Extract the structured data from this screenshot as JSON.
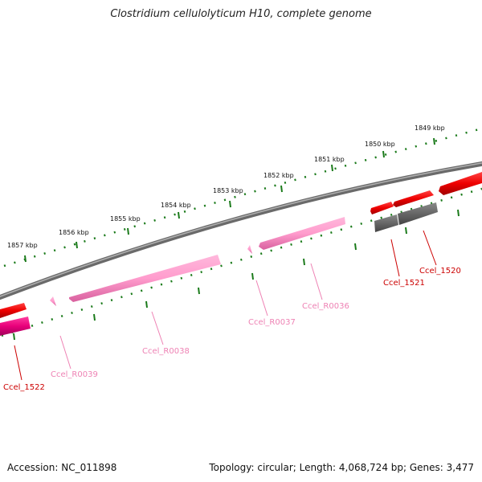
{
  "title": "Clostridium cellulolyticum H10, complete genome",
  "accession": "Accession: NC_011898",
  "topology": "Topology: circular; Length: 4,068,724 bp; Genes: 3,477",
  "kbp_labels": [
    "1849 kbp",
    "1850 kbp",
    "1851 kbp",
    "1852 kbp",
    "1853 kbp",
    "1854 kbp",
    "1855 kbp",
    "1856 kbp",
    "1857 kbp"
  ],
  "genes": [
    {
      "name": "Ccel_1520",
      "color": "#cc0000"
    },
    {
      "name": "Ccel_1521",
      "color": "#cc0000"
    },
    {
      "name": "Ccel_R0036",
      "color": "#ee82b4"
    },
    {
      "name": "Ccel_R0037",
      "color": "#ee82b4"
    },
    {
      "name": "Ccel_R0038",
      "color": "#ee82b4"
    },
    {
      "name": "Ccel_R0039",
      "color": "#ee82b4"
    },
    {
      "name": "Ccel_1522",
      "color": "#cc0000"
    }
  ],
  "colors": {
    "backbone": "#808080",
    "tick": "#1a7a1a",
    "gene_red": "#ff0000",
    "rna_pink": "#ff9ecf",
    "pseudo_gray": "#666666",
    "magenta": "#e8007a"
  }
}
